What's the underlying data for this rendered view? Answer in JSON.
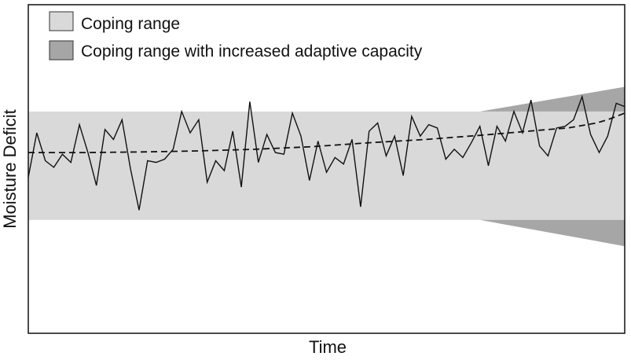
{
  "chart_data": {
    "type": "line",
    "xlabel": "Time",
    "ylabel": "Moisture Deficit",
    "ylim": [
      0,
      100
    ],
    "grid": false,
    "legend_position": "top-left",
    "legend": [
      {
        "name": "Coping range",
        "color": "#d9d9d9"
      },
      {
        "name": "Coping range with increased adaptive capacity",
        "color": "#a6a6a6"
      }
    ],
    "bands": {
      "coping_range": {
        "lower": 34.5,
        "upper": 67.5,
        "color": "#d9d9d9"
      },
      "increased_capacity": {
        "start_x": 79.5,
        "lower_at_end": 26.5,
        "upper_at_end": 75,
        "color": "#a6a6a6"
      }
    },
    "series": [
      {
        "name": "",
        "style": "solid",
        "color": "#111111",
        "points": [
          [
            0.0,
            47.5
          ],
          [
            1.5,
            61
          ],
          [
            3.0,
            52.5
          ],
          [
            4.5,
            50.5
          ],
          [
            6.0,
            54.5
          ],
          [
            7.5,
            52
          ],
          [
            9.0,
            63.5
          ],
          [
            10.5,
            55
          ],
          [
            12.0,
            45
          ],
          [
            13.5,
            62
          ],
          [
            15.0,
            59
          ],
          [
            16.5,
            65
          ],
          [
            18.0,
            50
          ],
          [
            19.5,
            37.5
          ],
          [
            21.0,
            52.5
          ],
          [
            22.5,
            52
          ],
          [
            24.0,
            53
          ],
          [
            25.5,
            56
          ],
          [
            27.0,
            67.5
          ],
          [
            28.5,
            61
          ],
          [
            30.0,
            65
          ],
          [
            31.5,
            46
          ],
          [
            33.0,
            52.5
          ],
          [
            34.5,
            49.5
          ],
          [
            36.0,
            61.5
          ],
          [
            37.5,
            44.5
          ],
          [
            39.0,
            70.5
          ],
          [
            40.5,
            52
          ],
          [
            42.0,
            60.5
          ],
          [
            43.5,
            55
          ],
          [
            45.0,
            54.5
          ],
          [
            46.5,
            67
          ],
          [
            48.0,
            60
          ],
          [
            49.5,
            46.5
          ],
          [
            51.0,
            58.5
          ],
          [
            52.5,
            49
          ],
          [
            54.0,
            53.5
          ],
          [
            55.5,
            51.5
          ],
          [
            57.0,
            59
          ],
          [
            58.5,
            38.5
          ],
          [
            60.0,
            61.5
          ],
          [
            61.5,
            64
          ],
          [
            63.0,
            54
          ],
          [
            64.5,
            60
          ],
          [
            66.0,
            48
          ],
          [
            67.5,
            66
          ],
          [
            69.0,
            60
          ],
          [
            70.5,
            63.5
          ],
          [
            72.0,
            62.5
          ],
          [
            73.5,
            53
          ],
          [
            75.0,
            56
          ],
          [
            76.5,
            53.5
          ],
          [
            78.0,
            58
          ],
          [
            79.5,
            63
          ],
          [
            81.0,
            51
          ],
          [
            82.5,
            63
          ],
          [
            84.0,
            58.5
          ],
          [
            85.5,
            67.5
          ],
          [
            87.0,
            61
          ],
          [
            88.5,
            71
          ],
          [
            90.0,
            57
          ],
          [
            91.5,
            54
          ],
          [
            93.0,
            62.5
          ],
          [
            94.5,
            63
          ],
          [
            96.0,
            65
          ],
          [
            97.5,
            72
          ],
          [
            99.0,
            60.5
          ],
          [
            100.5,
            55
          ],
          [
            102.0,
            60
          ],
          [
            103.5,
            70
          ],
          [
            105.0,
            69
          ]
        ]
      },
      {
        "name": "",
        "style": "dashed",
        "color": "#111111",
        "points": [
          [
            0,
            55
          ],
          [
            10,
            55
          ],
          [
            20,
            55.2
          ],
          [
            30,
            55.5
          ],
          [
            40,
            56
          ],
          [
            50,
            56.8
          ],
          [
            60,
            58
          ],
          [
            70,
            59
          ],
          [
            80,
            60.3
          ],
          [
            90,
            61.8
          ],
          [
            95,
            62.5
          ],
          [
            100,
            64
          ],
          [
            102,
            65
          ],
          [
            105,
            67
          ]
        ]
      }
    ]
  }
}
